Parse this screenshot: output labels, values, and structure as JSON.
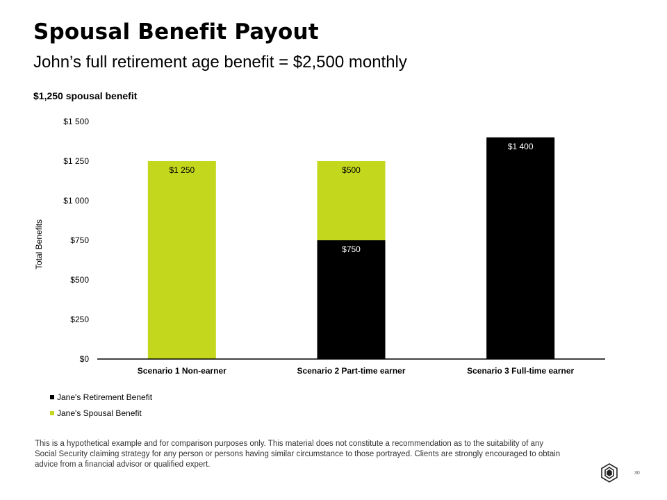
{
  "header": {
    "title": "Spousal Benefit Payout",
    "subtitle": "John’s full retirement age benefit = $2,500 monthly"
  },
  "chart_heading": "$1,250 spousal benefit",
  "chart_data": {
    "type": "bar",
    "stacked": true,
    "title": "$1,250 spousal benefit",
    "xlabel": "",
    "ylabel": "Total Benefits",
    "ylim": [
      0,
      1500
    ],
    "yticks": [
      0,
      250,
      500,
      750,
      1000,
      1250,
      1500
    ],
    "ytick_labels": [
      "$0",
      "$250",
      "$500",
      "$750",
      "$1 000",
      "$1 250",
      "$1 500"
    ],
    "categories": [
      "Scenario 1 Non-earner",
      "Scenario 2 Part-time earner",
      "Scenario 3 Full-time earner"
    ],
    "series": [
      {
        "name": "Jane's Retirement Benefit",
        "color": "#000000",
        "values": [
          0,
          750,
          1400
        ],
        "labels": [
          "",
          "$750",
          "$1 400"
        ],
        "label_color": "#ffffff"
      },
      {
        "name": "Jane's Spousal Benefit",
        "color": "#c3d81c",
        "values": [
          1250,
          500,
          0
        ],
        "labels": [
          "$1 250",
          "$500",
          ""
        ],
        "label_color": "#000000"
      }
    ],
    "grid": false,
    "legend_position": "bottom-left"
  },
  "disclaimer": "This is a hypothetical example and for comparison purposes only. This material does not constitute a recommendation as to the suitability of any Social Security claiming strategy for any person or persons having similar circumstance to those portrayed. Clients are strongly encouraged to obtain advice from a financial advisor or qualified expert.",
  "page_number": "30",
  "logo_icon": "company-logo-icon"
}
